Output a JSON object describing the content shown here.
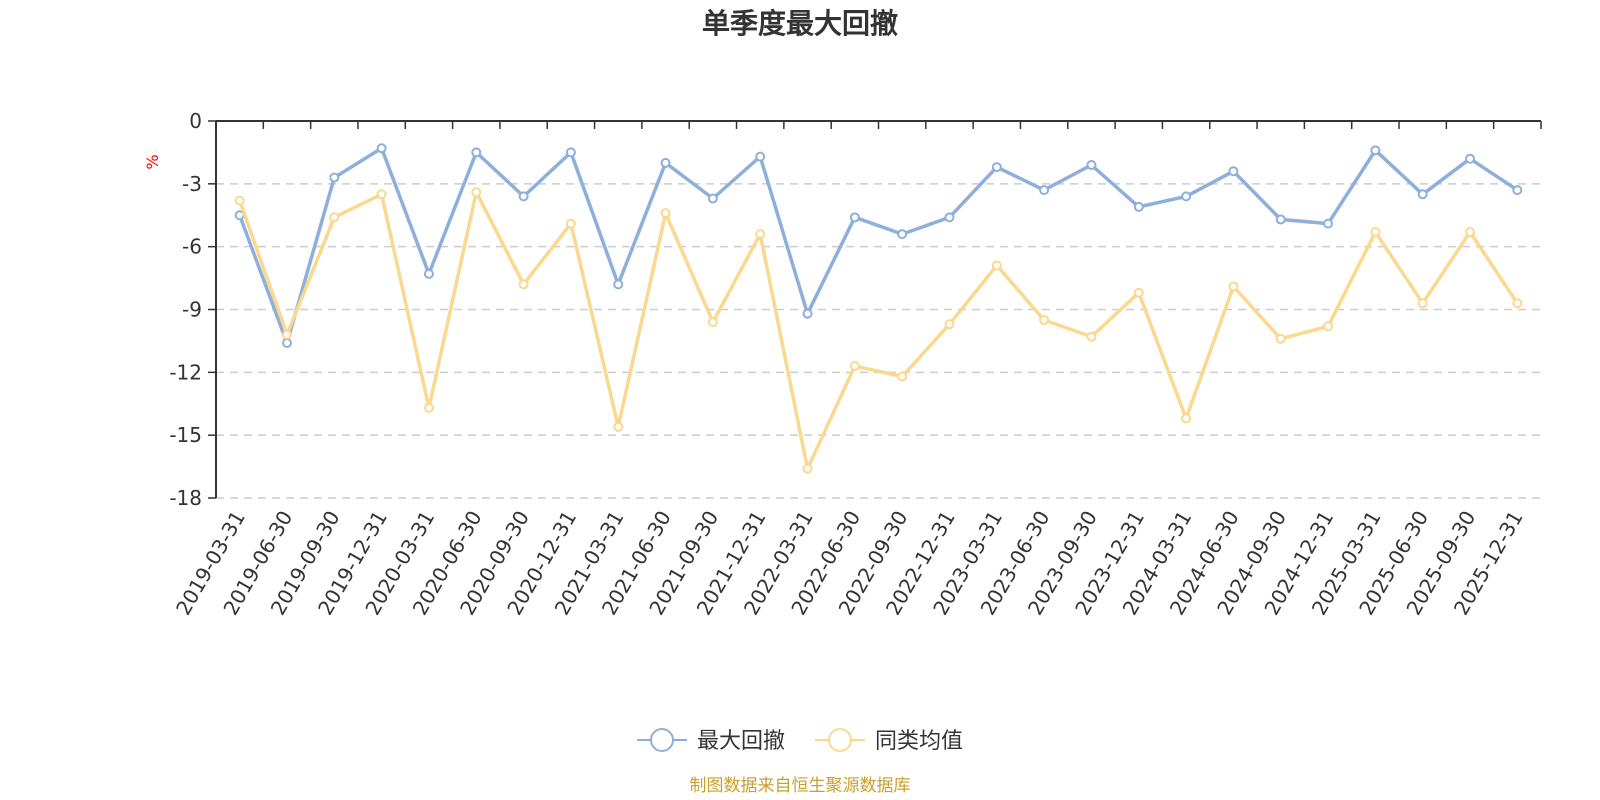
{
  "chart_data": {
    "type": "line",
    "title": "单季度最大回撤",
    "ylabel": "%",
    "xlabel": "",
    "ylim": [
      -18,
      0
    ],
    "yticks": [
      0,
      -3,
      -6,
      -9,
      -12,
      -15,
      -18
    ],
    "grid": true,
    "legend_position": "bottom-center",
    "categories": [
      "2019-03-31",
      "2019-06-30",
      "2019-09-30",
      "2019-12-31",
      "2020-03-31",
      "2020-06-30",
      "2020-09-30",
      "2020-12-31",
      "2021-03-31",
      "2021-06-30",
      "2021-09-30",
      "2021-12-31",
      "2022-03-31",
      "2022-06-30",
      "2022-09-30",
      "2022-12-31",
      "2023-03-31",
      "2023-06-30",
      "2023-09-30",
      "2023-12-31",
      "2024-03-31",
      "2024-06-30",
      "2024-09-30",
      "2024-12-31",
      "2025-03-31",
      "2025-06-30",
      "2025-09-30",
      "2025-12-31"
    ],
    "series": [
      {
        "name": "最大回撤",
        "color": "#8eaedb",
        "values": [
          -4.5,
          -10.6,
          -2.7,
          -1.3,
          -7.3,
          -1.5,
          -3.6,
          -1.5,
          -7.8,
          -2.0,
          -3.7,
          -1.7,
          -9.2,
          -4.6,
          -5.4,
          -4.6,
          -2.2,
          -3.3,
          -2.1,
          -4.1,
          -3.6,
          -2.4,
          -4.7,
          -4.9,
          -1.4,
          -3.5,
          -1.8,
          -3.3
        ]
      },
      {
        "name": "同类均值",
        "color": "#fbd88e",
        "values": [
          -3.8,
          -10.2,
          -4.6,
          -3.5,
          -13.7,
          -3.4,
          -7.8,
          -4.9,
          -14.6,
          -4.4,
          -9.6,
          -5.4,
          -16.6,
          -11.7,
          -12.2,
          -9.7,
          -6.9,
          -9.5,
          -10.3,
          -8.2,
          -14.2,
          -7.9,
          -10.4,
          -9.8,
          -5.3,
          -8.7,
          -5.3,
          -8.7
        ]
      }
    ],
    "source": "制图数据来自恒生聚源数据库"
  }
}
